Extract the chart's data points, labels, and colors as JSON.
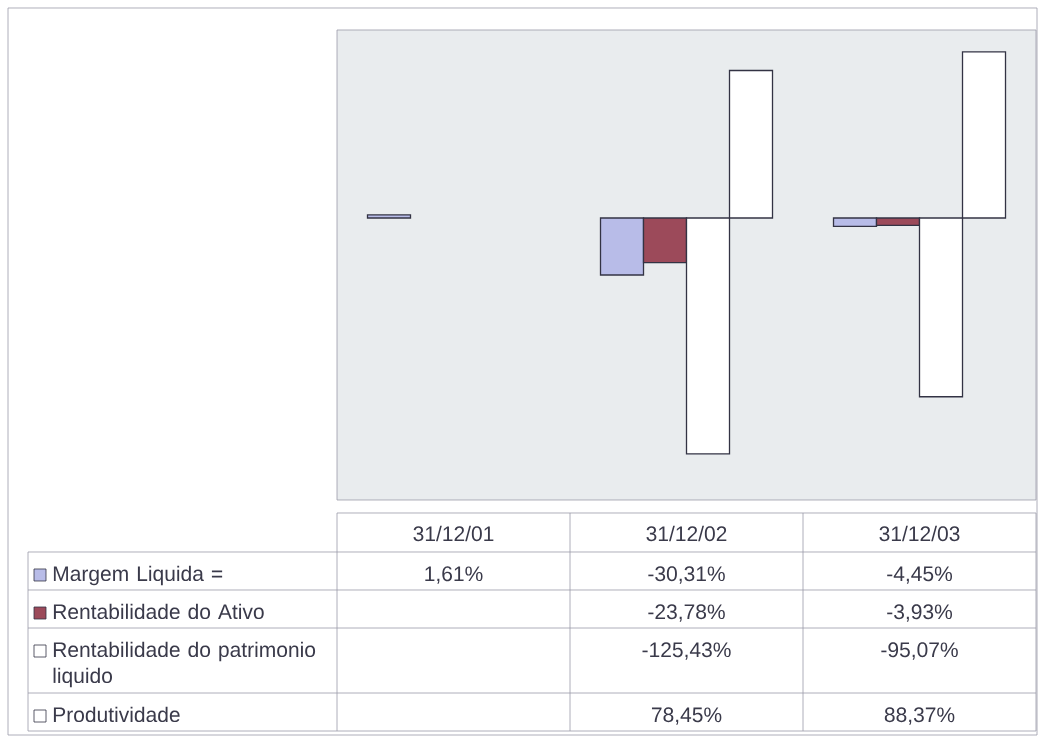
{
  "chart_data": {
    "type": "bar",
    "categories": [
      "31/12/01",
      "31/12/02",
      "31/12/03"
    ],
    "series": [
      {
        "name": "Margem Liquida =",
        "color": "#b8bce8",
        "values": [
          1.61,
          -30.31,
          -4.45
        ],
        "value_labels": [
          "1,61%",
          "-30,31%",
          "-4,45%"
        ]
      },
      {
        "name": "Rentabilidade do Ativo",
        "color": "#9c4a5a",
        "values": [
          null,
          -23.78,
          -3.93
        ],
        "value_labels": [
          null,
          "-23,78%",
          "-3,93%"
        ]
      },
      {
        "name": "Rentabilidade do patrimonio liquido",
        "color": "#ffffff",
        "values": [
          null,
          -125.43,
          -95.07
        ],
        "value_labels": [
          null,
          "-125,43%",
          "-95,07%"
        ]
      },
      {
        "name": "Produtividade",
        "color": "#ffffff",
        "values": [
          null,
          78.45,
          88.37
        ],
        "value_labels": [
          null,
          "78,45%",
          "88,37%"
        ]
      }
    ],
    "ylim": [
      -150,
      100
    ],
    "legend": "bottom",
    "tick_labels": "x"
  }
}
